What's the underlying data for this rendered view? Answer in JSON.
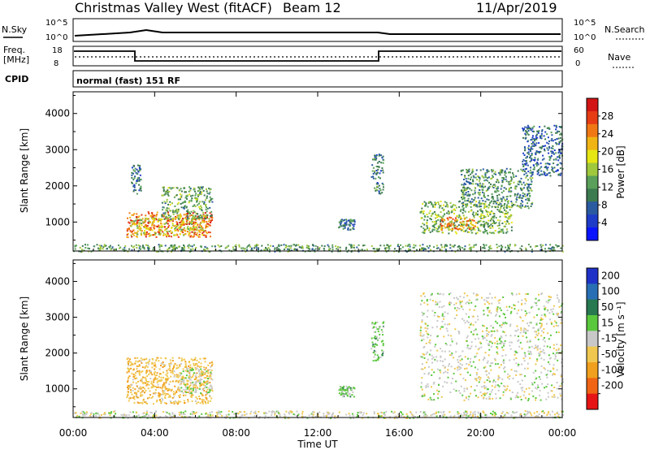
{
  "header": {
    "station": "Christmas Valley West (fitACF)",
    "beam": "Beam 12",
    "date": "11/Apr/2019"
  },
  "sky_panel": {
    "left_label": "N.Sky",
    "left_ticks": [
      "10^5",
      "10^0"
    ],
    "right_ticks": [
      "10^5",
      "10^0"
    ],
    "right_label": "N.Search"
  },
  "freq_panel": {
    "left_label_1": "Freq.",
    "left_label_2": "[MHz]",
    "left_ticks": [
      "18",
      "8"
    ],
    "right_ticks": [
      "60",
      "0"
    ],
    "right_label": "Nave"
  },
  "cpid_panel": {
    "label": "CPID",
    "mode": "normal (fast) 151 RF"
  },
  "colors": {
    "power_scale": [
      "#0a14ff",
      "#1e3cc8",
      "#2a5aa0",
      "#3c7a50",
      "#5aa05a",
      "#a0c83c",
      "#e6e614",
      "#f0b414",
      "#f07814",
      "#e63c14",
      "#d21414"
    ],
    "velocity_scale": [
      "#1e32c8",
      "#286eb4",
      "#287850",
      "#5ac83c",
      "#c8c8c8",
      "#f0c850",
      "#f0a01e",
      "#f06414",
      "#e61414"
    ]
  },
  "chart_data": [
    {
      "type": "heatmap",
      "parameter": "power",
      "ylabel": "Slant Range [km]",
      "xlabel": "Time UT",
      "xlim": [
        0,
        24
      ],
      "x_ticks": [
        "00:00",
        "04:00",
        "08:00",
        "12:00",
        "16:00",
        "20:00",
        "00:00"
      ],
      "ylim": [
        200,
        4600
      ],
      "y_ticks": [
        1000,
        2000,
        3000,
        4000
      ],
      "colorbar": {
        "label": "Power [dB]",
        "ticks": [
          4,
          8,
          12,
          16,
          20,
          24,
          28
        ],
        "range": [
          0,
          32
        ]
      },
      "regions": [
        {
          "t0": 2.6,
          "t1": 6.8,
          "r0": 600,
          "r1": 1300,
          "value": 26
        },
        {
          "t0": 2.8,
          "t1": 6.5,
          "r0": 650,
          "r1": 1150,
          "value": 18
        },
        {
          "t0": 4.3,
          "t1": 6.8,
          "r0": 1100,
          "r1": 2000,
          "value": 13
        },
        {
          "t0": 2.8,
          "t1": 3.3,
          "r0": 1800,
          "r1": 2600,
          "value": 9
        },
        {
          "t0": 13.0,
          "t1": 13.8,
          "r0": 800,
          "r1": 1100,
          "value": 9
        },
        {
          "t0": 14.6,
          "t1": 15.2,
          "r0": 1800,
          "r1": 2900,
          "value": 10
        },
        {
          "t0": 17.0,
          "t1": 21.5,
          "r0": 700,
          "r1": 1600,
          "value": 14
        },
        {
          "t0": 18.0,
          "t1": 19.8,
          "r0": 800,
          "r1": 1150,
          "value": 25
        },
        {
          "t0": 19.0,
          "t1": 22.5,
          "r0": 1400,
          "r1": 2500,
          "value": 11
        },
        {
          "t0": 22.0,
          "t1": 24.0,
          "r0": 2300,
          "r1": 3700,
          "value": 8
        },
        {
          "t0": 0.0,
          "t1": 24.0,
          "r0": 200,
          "r1": 400,
          "value": 12
        }
      ]
    },
    {
      "type": "heatmap",
      "parameter": "velocity",
      "ylabel": "Slant Range [km]",
      "xlabel": "Time UT",
      "xlim": [
        0,
        24
      ],
      "x_ticks": [
        "00:00",
        "04:00",
        "08:00",
        "12:00",
        "16:00",
        "20:00",
        "00:00"
      ],
      "ylim": [
        200,
        4600
      ],
      "y_ticks": [
        1000,
        2000,
        3000,
        4000
      ],
      "colorbar": {
        "label": "Velocity [m s⁻¹]",
        "ticks": [
          "200",
          "100",
          "50",
          "15",
          "-15",
          "-50",
          "-100",
          "-200"
        ]
      },
      "regions": [
        {
          "t0": 2.6,
          "t1": 6.8,
          "r0": 600,
          "r1": 1900,
          "value": -40
        },
        {
          "t0": 5.2,
          "t1": 6.8,
          "r0": 900,
          "r1": 1600,
          "value": 0
        },
        {
          "t0": 13.0,
          "t1": 13.8,
          "r0": 800,
          "r1": 1100,
          "value": 30
        },
        {
          "t0": 14.6,
          "t1": 15.2,
          "r0": 1800,
          "r1": 2900,
          "value": 25
        },
        {
          "t0": 17.0,
          "t1": 24.0,
          "r0": 700,
          "r1": 3700,
          "value": 0
        },
        {
          "t0": 0.0,
          "t1": 24.0,
          "r0": 200,
          "r1": 400,
          "value": 0
        }
      ]
    }
  ]
}
